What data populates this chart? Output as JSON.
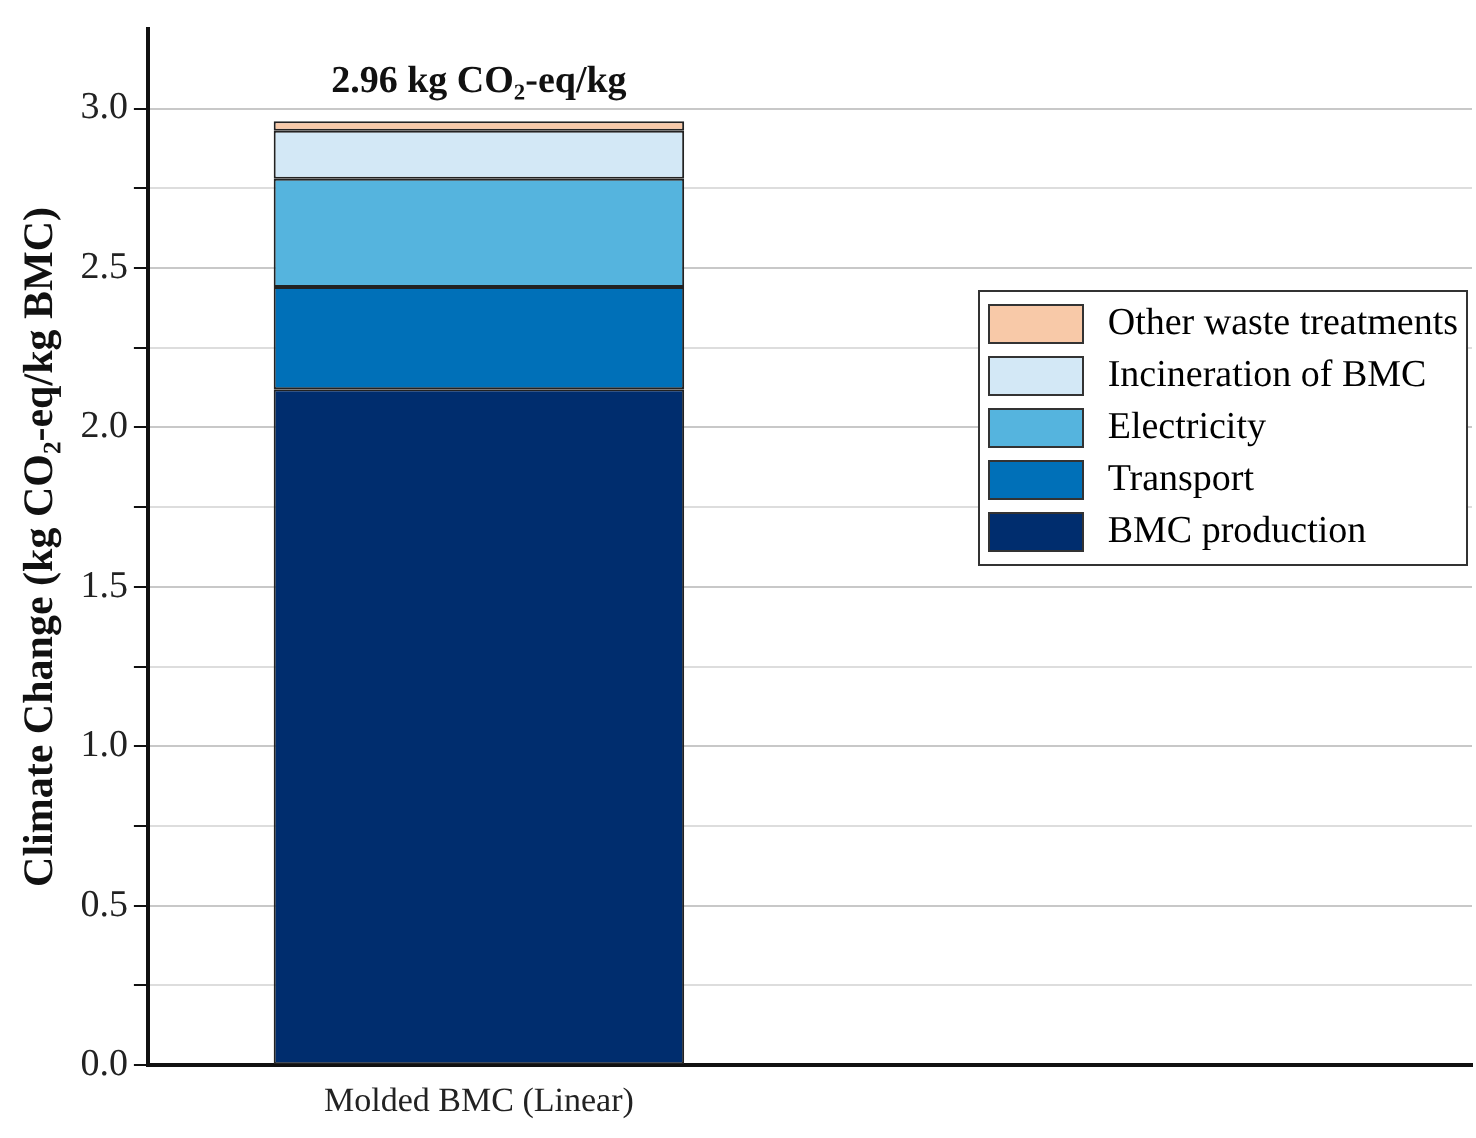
{
  "chart_data": {
    "type": "bar",
    "stacked": true,
    "ylabel": "Climate Change (kg CO₂-eq/kg BMC)",
    "categories": [
      "Molded BMC (Linear)"
    ],
    "series": [
      {
        "name": "BMC production",
        "color": "#002d6e",
        "values": [
          2.12
        ]
      },
      {
        "name": "Transport",
        "color": "#0070b8",
        "values": [
          0.32
        ]
      },
      {
        "name": "Electricity",
        "color": "#55b4de",
        "values": [
          0.34
        ]
      },
      {
        "name": "Incineration of BMC",
        "color": "#d3e8f6",
        "values": [
          0.15
        ]
      },
      {
        "name": "Other waste treatments",
        "color": "#f8c9a8",
        "values": [
          0.03
        ]
      }
    ],
    "totals": [
      "2.96 kg CO₂-eq/kg"
    ],
    "ylim": [
      0,
      3.25
    ],
    "yticks": [
      {
        "value": 0,
        "label": "0.0"
      },
      {
        "value": 0.25,
        "label": null
      },
      0.5,
      {
        "value": 0.75,
        "label": null
      },
      {
        "value": 1,
        "label": "1.0"
      },
      {
        "value": 1.25,
        "label": null
      },
      1.5,
      {
        "value": 1.75,
        "label": null
      },
      {
        "value": 2,
        "label": "2.0"
      },
      {
        "value": 2.25,
        "label": null
      },
      2.5,
      {
        "value": 2.75,
        "label": null
      },
      {
        "value": 3,
        "label": "3.0"
      }
    ],
    "grid": "y",
    "legend": "right"
  }
}
